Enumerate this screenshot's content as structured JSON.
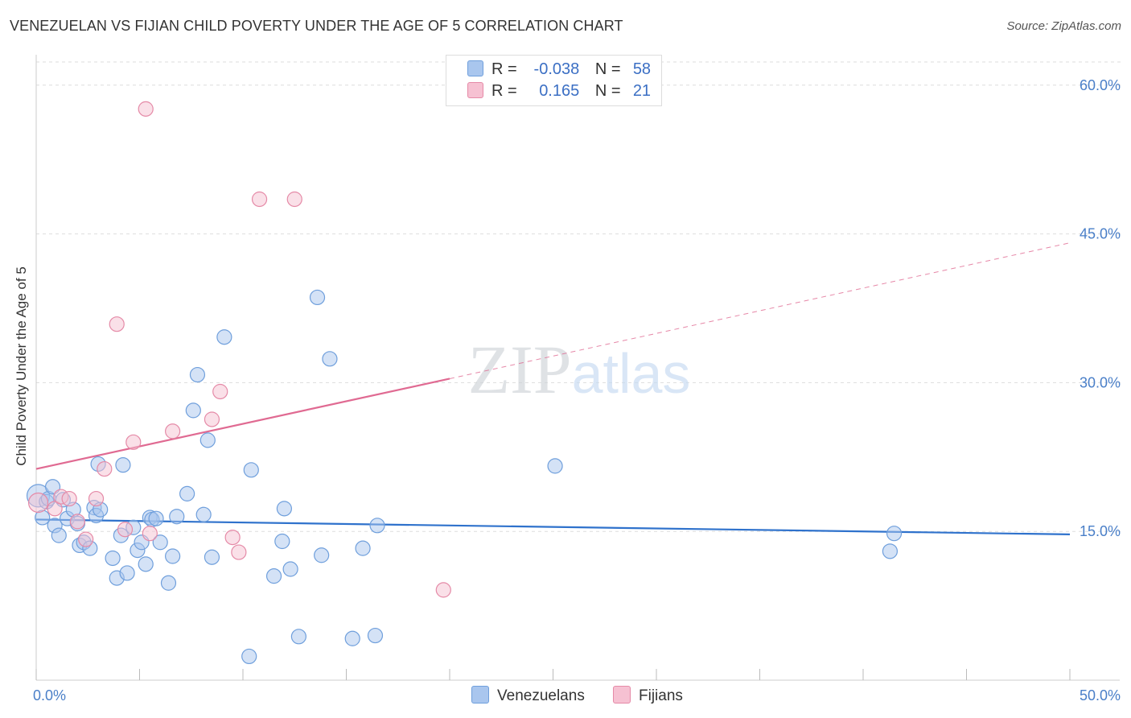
{
  "colors": {
    "venezuelan_fill": "#a9c6ee",
    "venezuelan_stroke": "#6f9fdc",
    "venezuelan_line": "#2f72cc",
    "fijian_fill": "#f6c1d2",
    "fijian_stroke": "#e58aa7",
    "fijian_line": "#e06a92",
    "tick_text": "#4a7fc8",
    "grid": "#dddddd"
  },
  "chart_data": {
    "type": "scatter",
    "title": "VENEZUELAN VS FIJIAN CHILD POVERTY UNDER THE AGE OF 5 CORRELATION CHART",
    "source": "Source: ZipAtlas.com",
    "watermark": "ZIPatlas",
    "xlabel": "",
    "ylabel": "Child Poverty Under the Age of 5",
    "xlim": [
      0,
      50
    ],
    "ylim": [
      0,
      62.5
    ],
    "x_ticks": [
      0,
      5,
      10,
      15,
      20,
      25,
      30,
      35,
      40,
      45,
      50
    ],
    "x_tick_labels": [
      {
        "value": 0,
        "label": "0.0%"
      },
      {
        "value": 50,
        "label": "50.0%"
      }
    ],
    "y_ticks": [
      {
        "value": 15,
        "label": "15.0%"
      },
      {
        "value": 30,
        "label": "30.0%"
      },
      {
        "value": 45,
        "label": "45.0%"
      },
      {
        "value": 60,
        "label": "60.0%"
      }
    ],
    "legend": {
      "rows": [
        {
          "series": "Venezuelans",
          "r_label": "R =",
          "r_value": "-0.038",
          "n_label": "N =",
          "n_value": "58"
        },
        {
          "series": "Fijians",
          "r_label": "R =",
          "r_value": "0.165",
          "n_label": "N =",
          "n_value": "21"
        }
      ]
    },
    "series": [
      {
        "name": "Venezuelans",
        "points": [
          [
            0.1,
            18.6,
            14
          ],
          [
            0.3,
            16.4,
            9
          ],
          [
            0.5,
            18.0,
            9
          ],
          [
            0.6,
            18.3,
            9
          ],
          [
            0.8,
            19.5,
            9
          ],
          [
            0.9,
            15.6,
            9
          ],
          [
            1.1,
            14.6,
            9
          ],
          [
            1.3,
            18.2,
            9
          ],
          [
            1.5,
            16.3,
            9
          ],
          [
            1.8,
            17.2,
            9
          ],
          [
            2.0,
            15.8,
            9
          ],
          [
            2.1,
            13.6,
            9
          ],
          [
            2.3,
            13.9,
            9
          ],
          [
            2.6,
            13.3,
            9
          ],
          [
            2.8,
            17.4,
            9
          ],
          [
            2.9,
            16.6,
            9
          ],
          [
            3.0,
            21.8,
            9
          ],
          [
            3.1,
            17.2,
            9
          ],
          [
            3.7,
            12.3,
            9
          ],
          [
            3.9,
            10.3,
            9
          ],
          [
            4.1,
            14.6,
            9
          ],
          [
            4.2,
            21.7,
            9
          ],
          [
            4.4,
            10.8,
            9
          ],
          [
            4.7,
            15.4,
            9
          ],
          [
            4.9,
            13.1,
            9
          ],
          [
            5.1,
            13.9,
            9
          ],
          [
            5.3,
            11.7,
            9
          ],
          [
            5.5,
            16.4,
            9
          ],
          [
            5.6,
            16.2,
            9
          ],
          [
            5.8,
            16.3,
            9
          ],
          [
            6.0,
            13.9,
            9
          ],
          [
            6.4,
            9.8,
            9
          ],
          [
            6.6,
            12.5,
            9
          ],
          [
            6.8,
            16.5,
            9
          ],
          [
            7.3,
            18.8,
            9
          ],
          [
            7.6,
            27.2,
            9
          ],
          [
            7.8,
            30.8,
            9
          ],
          [
            8.1,
            16.7,
            9
          ],
          [
            8.3,
            24.2,
            9
          ],
          [
            8.5,
            12.4,
            9
          ],
          [
            9.1,
            34.6,
            9
          ],
          [
            10.3,
            2.4,
            9
          ],
          [
            10.4,
            21.2,
            9
          ],
          [
            11.5,
            10.5,
            9
          ],
          [
            11.9,
            14.0,
            9
          ],
          [
            12.0,
            17.3,
            9
          ],
          [
            12.3,
            11.2,
            9
          ],
          [
            12.7,
            4.4,
            9
          ],
          [
            13.6,
            38.6,
            9
          ],
          [
            13.8,
            12.6,
            9
          ],
          [
            14.2,
            32.4,
            9
          ],
          [
            15.3,
            4.2,
            9
          ],
          [
            15.8,
            13.3,
            9
          ],
          [
            16.4,
            4.5,
            9
          ],
          [
            16.5,
            15.6,
            9
          ],
          [
            25.1,
            21.6,
            9
          ],
          [
            41.3,
            13.0,
            9
          ],
          [
            41.5,
            14.8,
            9
          ]
        ],
        "trend": {
          "x0": 0,
          "y0": 16.2,
          "x1": 50,
          "y1": 14.7
        }
      },
      {
        "name": "Fijians",
        "points": [
          [
            0.1,
            17.9,
            12
          ],
          [
            0.9,
            17.3,
            9
          ],
          [
            1.2,
            18.5,
            9
          ],
          [
            1.6,
            18.3,
            9
          ],
          [
            2.0,
            16.0,
            9
          ],
          [
            2.4,
            14.2,
            9
          ],
          [
            2.9,
            18.3,
            9
          ],
          [
            3.3,
            21.3,
            9
          ],
          [
            3.9,
            35.9,
            9
          ],
          [
            4.3,
            15.2,
            9
          ],
          [
            4.7,
            24.0,
            9
          ],
          [
            5.3,
            57.6,
            9
          ],
          [
            5.5,
            14.8,
            9
          ],
          [
            6.6,
            25.1,
            9
          ],
          [
            8.5,
            26.3,
            9
          ],
          [
            8.9,
            29.1,
            9
          ],
          [
            9.5,
            14.4,
            9
          ],
          [
            9.8,
            12.9,
            9
          ],
          [
            10.8,
            48.5,
            9
          ],
          [
            12.5,
            48.5,
            9
          ],
          [
            19.7,
            9.1,
            9
          ]
        ],
        "trend_solid": {
          "x0": 0,
          "y0": 21.3,
          "x1": 20,
          "y1": 30.4
        },
        "trend_dashed": {
          "x0": 20,
          "y0": 30.4,
          "x1": 50,
          "y1": 44.1
        }
      }
    ]
  }
}
